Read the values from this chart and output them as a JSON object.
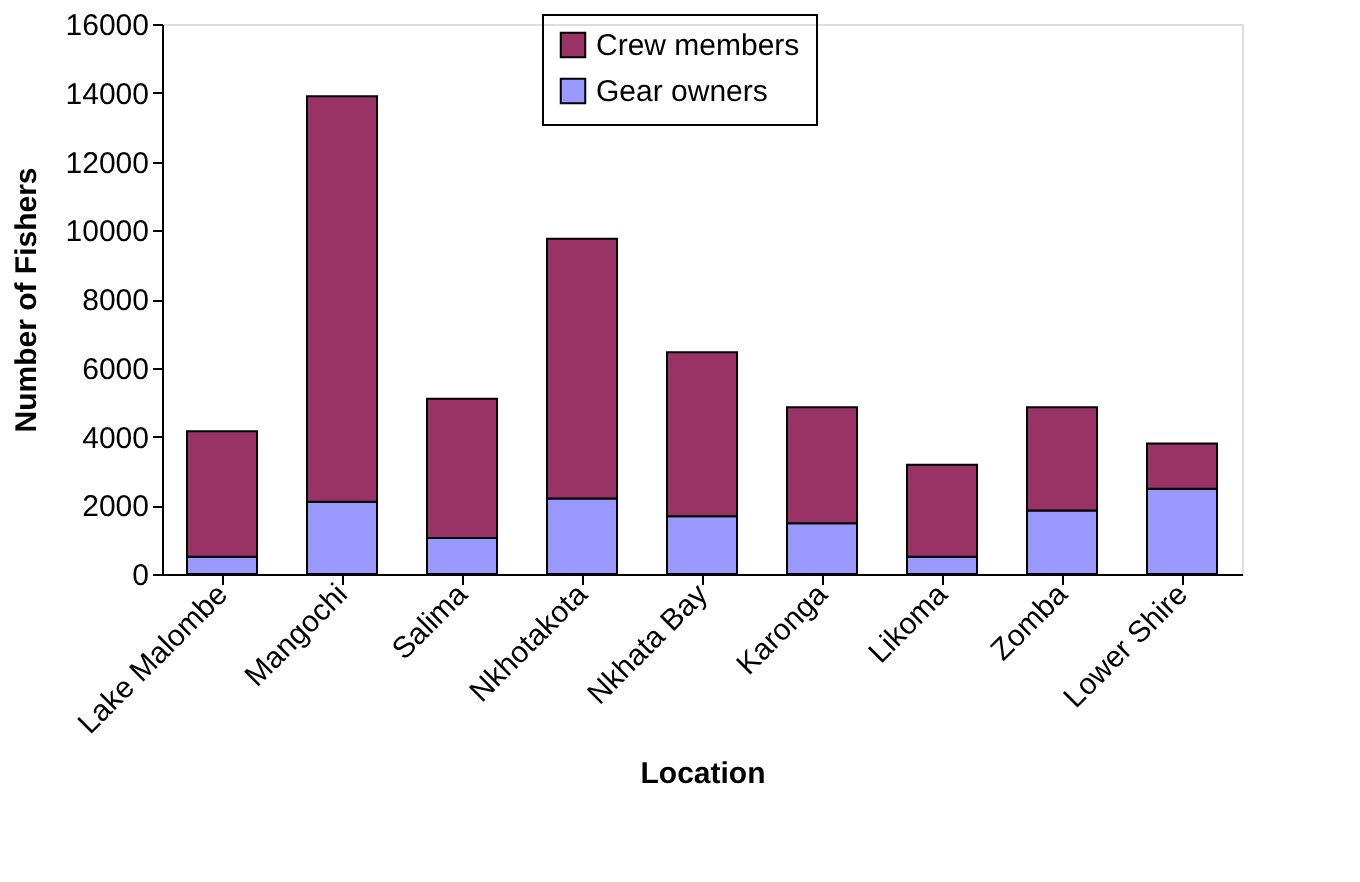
{
  "chart_data": {
    "type": "bar",
    "stacked": true,
    "xlabel": "Location",
    "ylabel": "Number of Fishers",
    "categories": [
      "Lake Malombe",
      "Mangochi",
      "Salima",
      "Nkhotakota",
      "Nkhata Bay",
      "Karonga",
      "Likoma",
      "Zomba",
      "Lower Shire"
    ],
    "series": [
      {
        "name": "Gear owners",
        "color": "#9999ff",
        "values": [
          500,
          2100,
          1050,
          2200,
          1680,
          1480,
          500,
          1850,
          2480
        ]
      },
      {
        "name": "Crew members",
        "color": "#993366",
        "values": [
          3650,
          11800,
          4050,
          7550,
          4770,
          3370,
          2680,
          3000,
          1320
        ]
      }
    ],
    "ylim": [
      0,
      16000
    ],
    "yticks": [
      0,
      2000,
      4000,
      6000,
      8000,
      10000,
      12000,
      14000,
      16000
    ],
    "grid": false,
    "legend": "top"
  }
}
